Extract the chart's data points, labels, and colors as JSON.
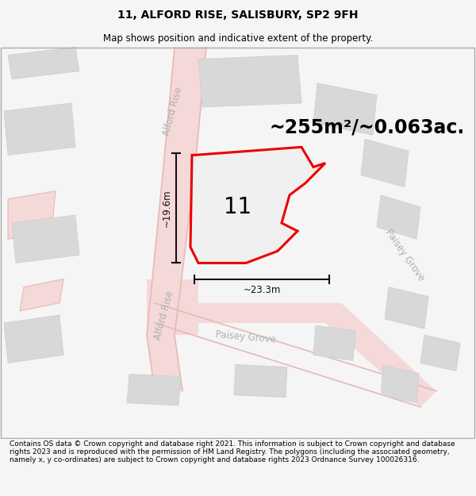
{
  "title_line1": "11, ALFORD RISE, SALISBURY, SP2 9FH",
  "title_line2": "Map shows position and indicative extent of the property.",
  "footer_text": "Contains OS data © Crown copyright and database right 2021. This information is subject to Crown copyright and database rights 2023 and is reproduced with the permission of HM Land Registry. The polygons (including the associated geometry, namely x, y co-ordinates) are subject to Crown copyright and database rights 2023 Ordnance Survey 100026316.",
  "area_label": "~255m²/~0.063ac.",
  "plot_number": "11",
  "width_label": "~23.3m",
  "height_label": "~19.6m",
  "road_label_alford1": "Alford Rise",
  "road_label_alford2": "Alford Rise",
  "road_label_paisey1": "Paisey Grove",
  "road_label_paisey2": "Paisey Grove",
  "bg_color": "#f5f5f5",
  "map_bg": "#ffffff",
  "plot_fill": "#f0f0f0",
  "plot_edge": "#ee0000",
  "road_fill": "#f5d8d8",
  "road_edge": "#e8b8b8",
  "block_fill": "#d8d8d8",
  "block_edge": "#cccccc",
  "dim_color": "#111111",
  "road_text_color": "#b0b0b0",
  "figsize": [
    6.0,
    6.25
  ],
  "dpi": 100,
  "title_fontsize": 10,
  "subtitle_fontsize": 8.5,
  "area_fontsize": 17,
  "plot_num_fontsize": 20,
  "dim_fontsize": 8.5,
  "road_fontsize": 8.5,
  "footer_fontsize": 6.5
}
